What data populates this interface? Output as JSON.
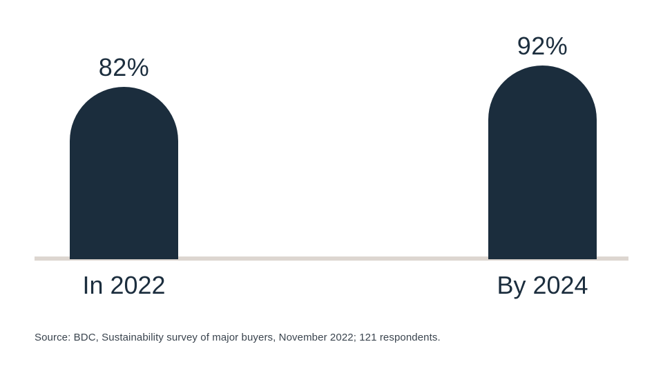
{
  "chart_data": {
    "type": "bar",
    "title": "",
    "categories": [
      "In 2022",
      "By 2024"
    ],
    "values": [
      82,
      92
    ],
    "value_labels": [
      "82%",
      "92%"
    ],
    "xlabel": "",
    "ylabel": "",
    "ylim": [
      0,
      100
    ],
    "grid": false,
    "legend": false,
    "bar_color": "#1b2d3d",
    "baseline_color": "#ddd6d0",
    "label_color": "#1c2e3e"
  },
  "source_note": {
    "text": "Source: BDC, Sustainability survey of major buyers, November 2022; 121 respondents.",
    "color": "#3a444e"
  }
}
